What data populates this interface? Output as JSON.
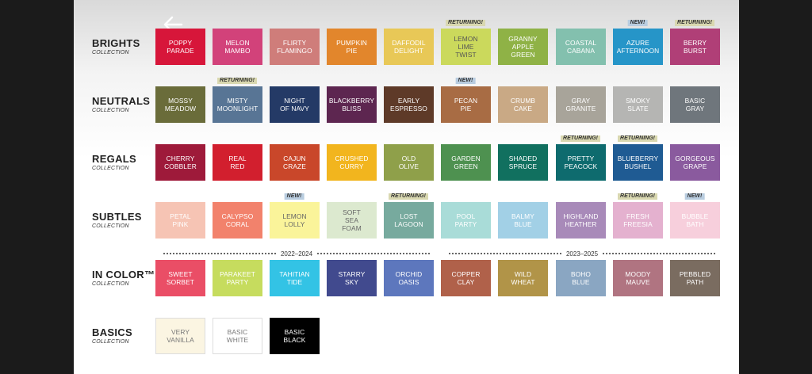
{
  "back_icon": "arrow-left-icon",
  "collection_sublabel": "COLLECTION",
  "badge_colors": {
    "RETURNING!": "#d9d8b0",
    "NEW!": "#b9cde0"
  },
  "eras": [
    {
      "label": "2022–2024"
    },
    {
      "label": "2023–2025"
    }
  ],
  "collections": [
    {
      "name": "BRIGHTS",
      "swatches": [
        {
          "label": "POPPY\nPARADE",
          "color": "#d7163a",
          "text": "#ffffff"
        },
        {
          "label": "MELON\nMAMBO",
          "color": "#d2427a",
          "text": "#ffffff"
        },
        {
          "label": "FLIRTY\nFLAMINGO",
          "color": "#cf7d7a",
          "text": "#ffffff"
        },
        {
          "label": "PUMPKIN\nPIE",
          "color": "#e2862c",
          "text": "#ffffff"
        },
        {
          "label": "DAFFODIL\nDELIGHT",
          "color": "#e8c857",
          "text": "#ffffff"
        },
        {
          "label": "LEMON\nLIME\nTWIST",
          "color": "#cbd95c",
          "text": "#555555",
          "badge": "RETURNING!"
        },
        {
          "label": "GRANNY\nAPPLE\nGREEN",
          "color": "#8fb246",
          "text": "#ffffff"
        },
        {
          "label": "COASTAL\nCABANA",
          "color": "#83c0ae",
          "text": "#ffffff"
        },
        {
          "label": "AZURE\nAFTERNOON",
          "color": "#2695c8",
          "text": "#ffffff",
          "badge": "NEW!"
        },
        {
          "label": "BERRY\nBURST",
          "color": "#b03f77",
          "text": "#ffffff",
          "badge": "RETURNING!"
        }
      ]
    },
    {
      "name": "NEUTRALS",
      "swatches": [
        {
          "label": "MOSSY\nMEADOW",
          "color": "#6a6c3a",
          "text": "#ffffff"
        },
        {
          "label": "MISTY\nMOONLIGHT",
          "color": "#587595",
          "text": "#ffffff",
          "badge": "RETURNING!"
        },
        {
          "label": "NIGHT\nOF NAVY",
          "color": "#243a66",
          "text": "#ffffff"
        },
        {
          "label": "BLACKBERRY\nBLISS",
          "color": "#5d2650",
          "text": "#ffffff"
        },
        {
          "label": "EARLY\nESPRESSO",
          "color": "#5e3a28",
          "text": "#ffffff"
        },
        {
          "label": "PECAN\nPIE",
          "color": "#a86c44",
          "text": "#ffffff",
          "badge": "NEW!"
        },
        {
          "label": "CRUMB\nCAKE",
          "color": "#c9a985",
          "text": "#ffffff"
        },
        {
          "label": "GRAY\nGRANITE",
          "color": "#a8a49a",
          "text": "#ffffff"
        },
        {
          "label": "SMOKY\nSLATE",
          "color": "#b5b5b3",
          "text": "#ffffff"
        },
        {
          "label": "BASIC\nGRAY",
          "color": "#6f767c",
          "text": "#ffffff"
        }
      ]
    },
    {
      "name": "REGALS",
      "swatches": [
        {
          "label": "CHERRY\nCOBBLER",
          "color": "#9e1a3a",
          "text": "#ffffff"
        },
        {
          "label": "REAL\nRED",
          "color": "#d21f2e",
          "text": "#ffffff"
        },
        {
          "label": "CAJUN\nCRAZE",
          "color": "#c9472a",
          "text": "#ffffff"
        },
        {
          "label": "CRUSHED\nCURRY",
          "color": "#f2b51e",
          "text": "#ffffff"
        },
        {
          "label": "OLD\nOLIVE",
          "color": "#8fa04a",
          "text": "#ffffff"
        },
        {
          "label": "GARDEN\nGREEN",
          "color": "#4e9150",
          "text": "#ffffff"
        },
        {
          "label": "SHADED\nSPRUCE",
          "color": "#11705f",
          "text": "#ffffff"
        },
        {
          "label": "PRETTY\nPEACOCK",
          "color": "#0e6b6e",
          "text": "#ffffff",
          "badge": "RETURNING!"
        },
        {
          "label": "BLUEBERRY\nBUSHEL",
          "color": "#1f5b93",
          "text": "#ffffff",
          "badge": "RETURNING!"
        },
        {
          "label": "GORGEOUS\nGRAPE",
          "color": "#8a5a9e",
          "text": "#ffffff"
        }
      ]
    },
    {
      "name": "SUBTLES",
      "swatches": [
        {
          "label": "PETAL\nPINK",
          "color": "#f6c4b4",
          "text": "#ffffff"
        },
        {
          "label": "CALYPSO\nCORAL",
          "color": "#f2826c",
          "text": "#ffffff"
        },
        {
          "label": "LEMON\nLOLLY",
          "color": "#faf49a",
          "text": "#666666",
          "badge": "NEW!"
        },
        {
          "label": "SOFT\nSEA\nFOAM",
          "color": "#dce9cf",
          "text": "#666666"
        },
        {
          "label": "LOST\nLAGOON",
          "color": "#77aa9e",
          "text": "#ffffff",
          "badge": "RETURNING!"
        },
        {
          "label": "POOL\nPARTY",
          "color": "#a9dcd8",
          "text": "#ffffff"
        },
        {
          "label": "BALMY\nBLUE",
          "color": "#a2d0e6",
          "text": "#ffffff"
        },
        {
          "label": "HIGHLAND\nHEATHER",
          "color": "#a88ab9",
          "text": "#ffffff"
        },
        {
          "label": "FRESH\nFREESIA",
          "color": "#e4b1cf",
          "text": "#ffffff",
          "badge": "RETURNING!"
        },
        {
          "label": "BUBBLE\nBATH",
          "color": "#f7cfdc",
          "text": "#ffffff",
          "badge": "NEW!"
        }
      ]
    },
    {
      "name": "IN COLOR™",
      "swatches": [
        {
          "label": "SWEET\nSORBET",
          "color": "#ea4e66",
          "text": "#ffffff"
        },
        {
          "label": "PARAKEET\nPARTY",
          "color": "#c6dc5e",
          "text": "#ffffff"
        },
        {
          "label": "TAHITIAN\nTIDE",
          "color": "#33c3e5",
          "text": "#ffffff"
        },
        {
          "label": "STARRY\nSKY",
          "color": "#414a8e",
          "text": "#ffffff"
        },
        {
          "label": "ORCHID\nOASIS",
          "color": "#5d77bd",
          "text": "#ffffff"
        },
        {
          "label": "COPPER\nCLAY",
          "color": "#b0614a",
          "text": "#ffffff"
        },
        {
          "label": "WILD\nWHEAT",
          "color": "#b19448",
          "text": "#ffffff"
        },
        {
          "label": "BOHO\nBLUE",
          "color": "#8aa6c2",
          "text": "#ffffff"
        },
        {
          "label": "MOODY\nMAUVE",
          "color": "#b07481",
          "text": "#ffffff"
        },
        {
          "label": "PEBBLED\nPATH",
          "color": "#7a6c60",
          "text": "#ffffff"
        }
      ]
    },
    {
      "name": "BASICS",
      "swatches": [
        {
          "label": "VERY\nVANILLA",
          "color": "#fbf5e2",
          "text": "#777777"
        },
        {
          "label": "BASIC\nWHITE",
          "color": "#ffffff",
          "text": "#777777"
        },
        {
          "label": "BASIC\nBLACK",
          "color": "#000000",
          "text": "#ffffff"
        }
      ]
    }
  ]
}
